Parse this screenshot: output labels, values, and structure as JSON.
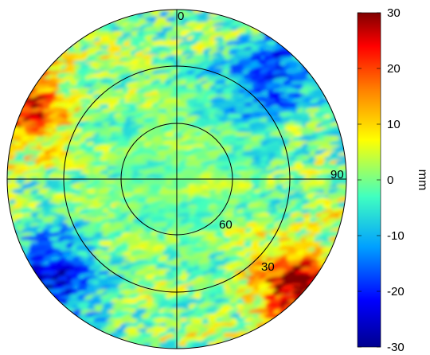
{
  "chart_data": {
    "type": "heatmap",
    "projection": "polar",
    "angle_labels": [
      "0",
      "90"
    ],
    "radius_labels": [
      "60",
      "30"
    ],
    "colorbar": {
      "label": "mm",
      "min": -30,
      "max": 30,
      "ticks": [
        "30",
        "20",
        "10",
        "0",
        "-10",
        "-20",
        "-30"
      ],
      "colors": [
        "#00008f",
        "#0000ff",
        "#00a0ff",
        "#40ffc0",
        "#ffff00",
        "#ff8000",
        "#ff0000",
        "#800000"
      ]
    },
    "grid": true,
    "hotspots": [
      {
        "label": "upper-left rim",
        "value": 24
      },
      {
        "label": "lower-right rim",
        "value": 28
      },
      {
        "label": "lower-left rim",
        "value": -24
      },
      {
        "label": "upper-right rim",
        "value": -20
      }
    ]
  }
}
